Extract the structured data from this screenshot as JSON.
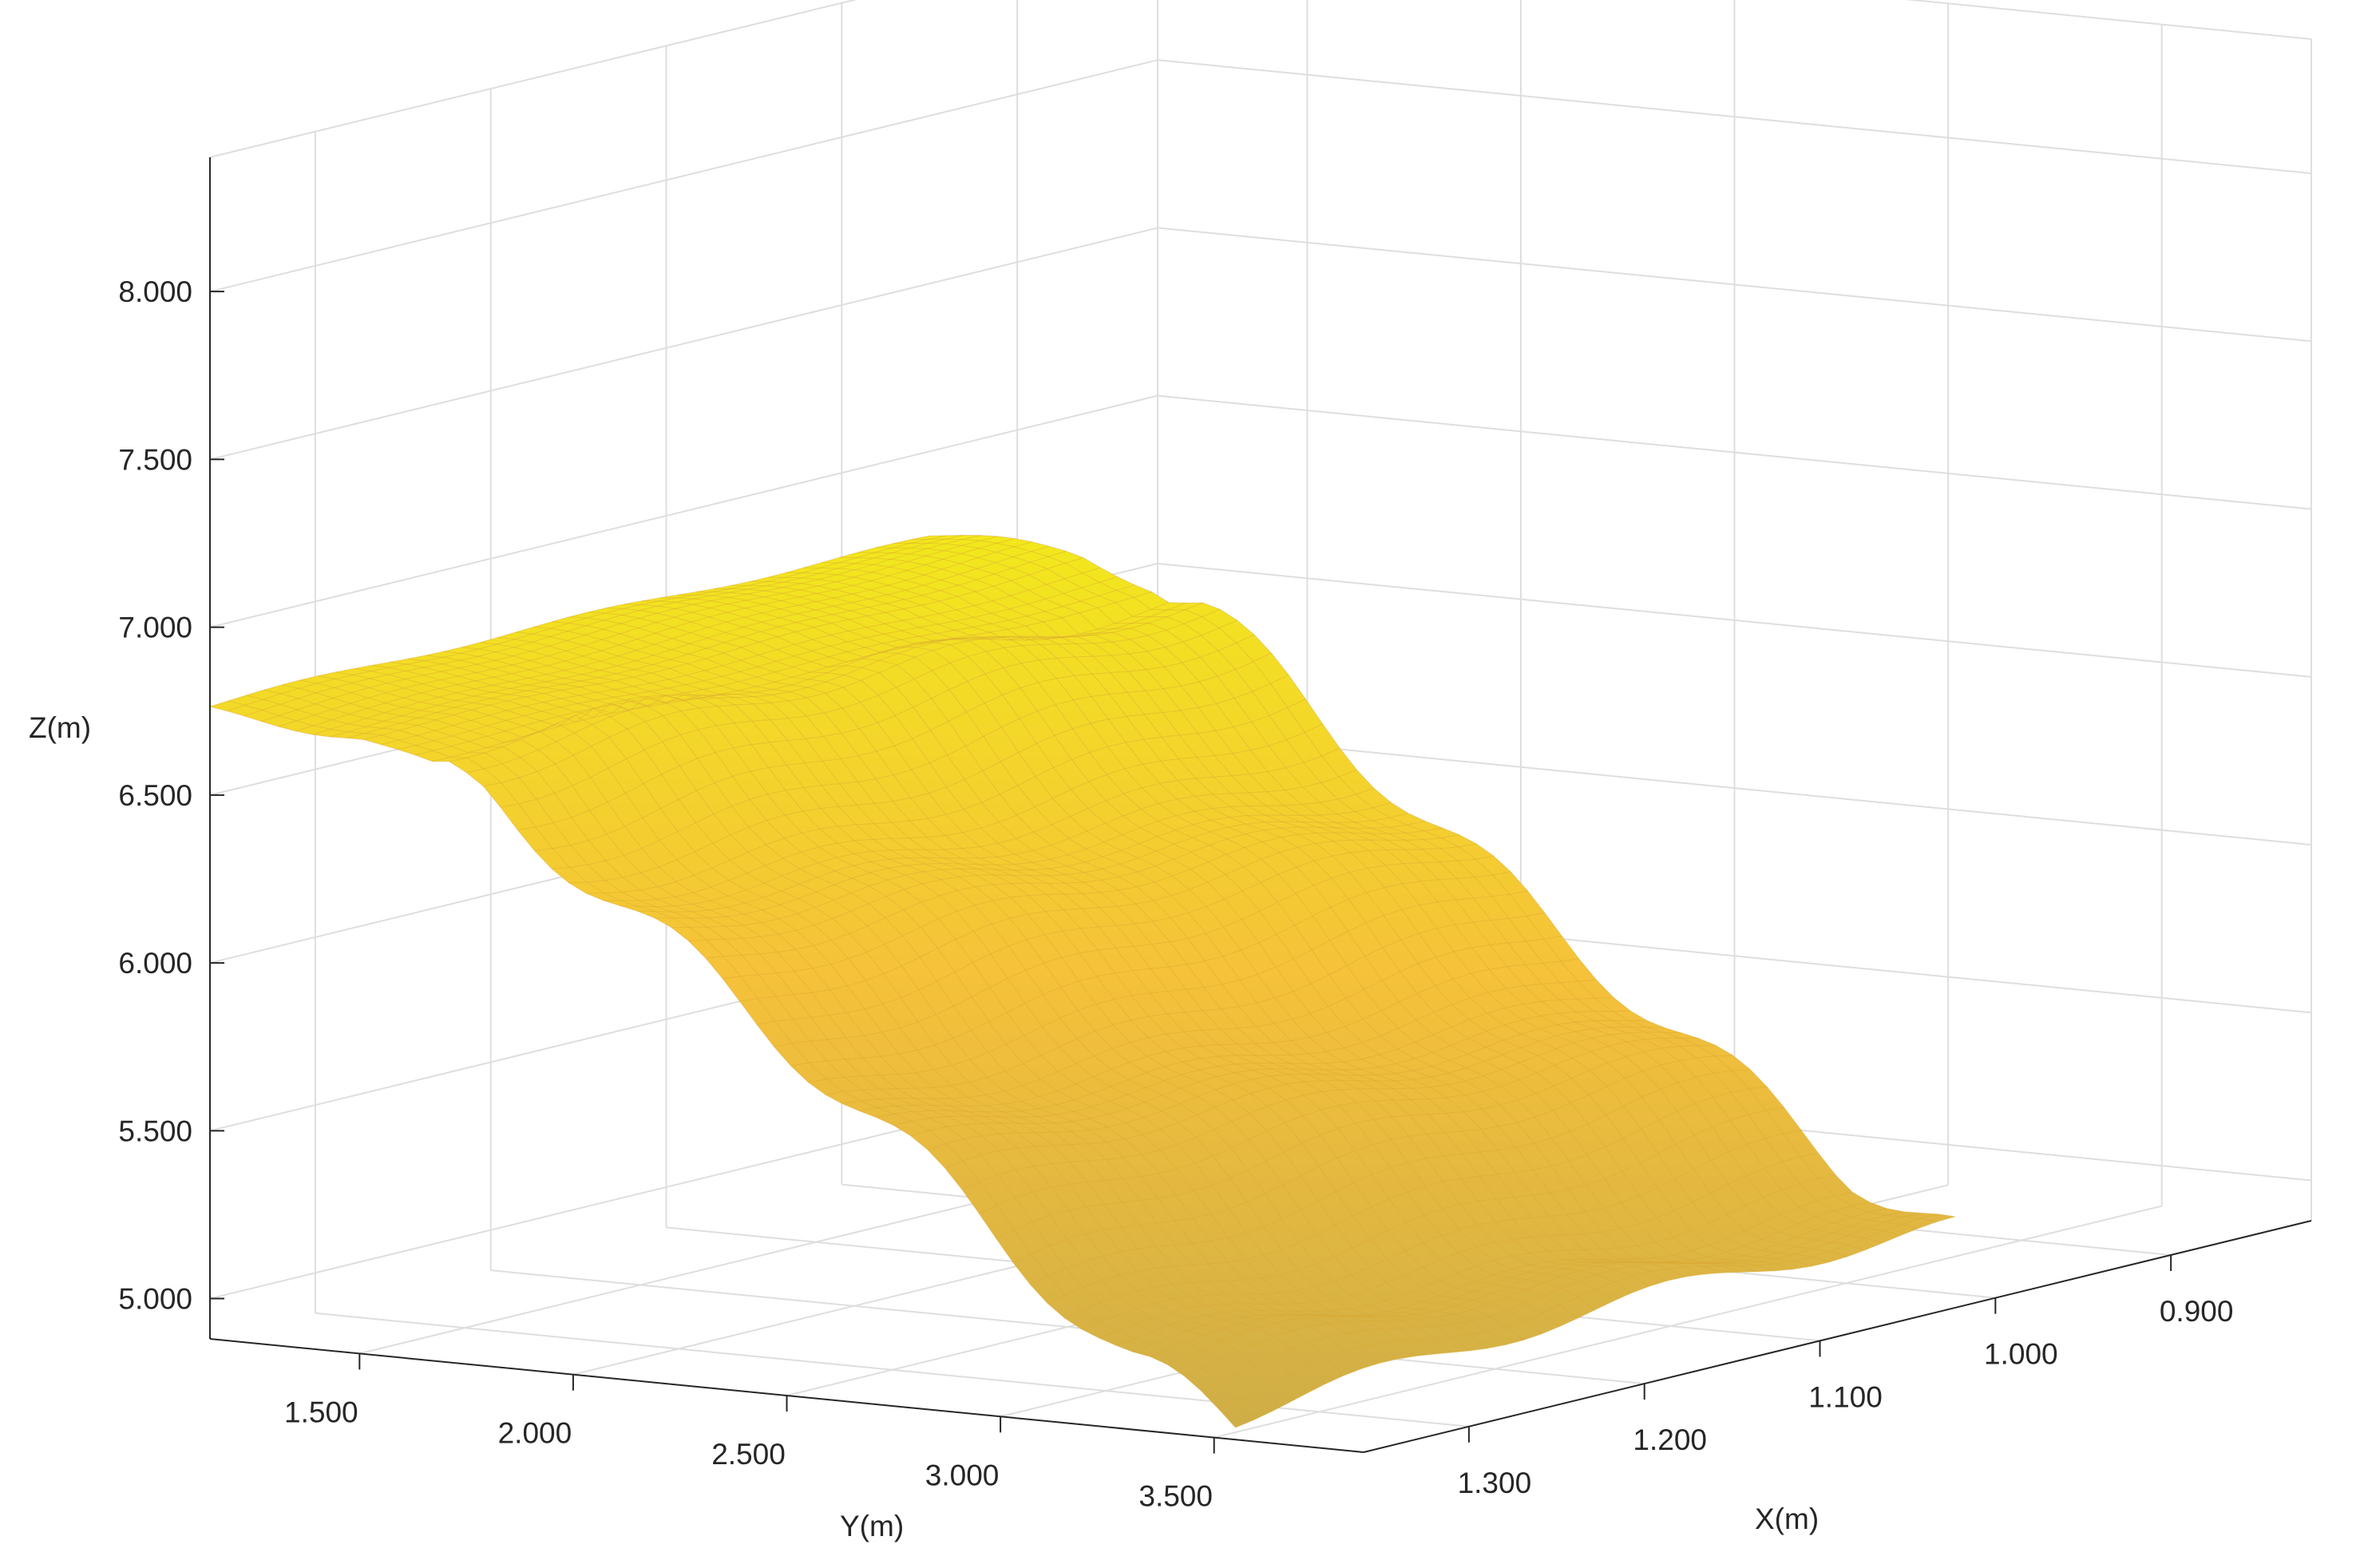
{
  "chart_data": {
    "type": "surface",
    "title": "",
    "xlabel": "X(m)",
    "ylabel": "Y(m)",
    "zlabel": "Z(m)",
    "xlim": [
      0.82,
      1.36
    ],
    "ylim": [
      1.15,
      3.85
    ],
    "zlim": [
      4.88,
      8.4
    ],
    "x_ticks": [
      {
        "value": 1.3,
        "label": "1.300"
      },
      {
        "value": 1.2,
        "label": "1.200"
      },
      {
        "value": 1.1,
        "label": "1.100"
      },
      {
        "value": 1.0,
        "label": "1.000"
      },
      {
        "value": 0.9,
        "label": "0.900"
      }
    ],
    "y_ticks": [
      {
        "value": 1.5,
        "label": "1.500"
      },
      {
        "value": 2.0,
        "label": "2.000"
      },
      {
        "value": 2.5,
        "label": "2.500"
      },
      {
        "value": 3.0,
        "label": "3.000"
      },
      {
        "value": 3.5,
        "label": "3.500"
      }
    ],
    "z_ticks": [
      {
        "value": 8.0,
        "label": "8.000"
      },
      {
        "value": 7.5,
        "label": "7.500"
      },
      {
        "value": 7.0,
        "label": "7.000"
      },
      {
        "value": 6.5,
        "label": "6.500"
      },
      {
        "value": 6.0,
        "label": "6.000"
      },
      {
        "value": 5.5,
        "label": "5.500"
      },
      {
        "value": 5.0,
        "label": "5.000"
      }
    ],
    "grid": true,
    "colormap": "parula (yellow-orange range)",
    "surface_extent": {
      "x_range": [
        0.95,
        1.36
      ],
      "y_range": [
        1.15,
        3.55
      ]
    },
    "surface_elevation_profile": {
      "y": [
        1.15,
        1.5,
        1.8,
        2.1,
        2.4,
        2.7,
        3.0,
        3.3,
        3.55
      ],
      "z": [
        6.75,
        6.73,
        6.6,
        6.3,
        6.0,
        5.7,
        5.4,
        5.1,
        4.95
      ]
    },
    "colors": {
      "surface_high": "#f2e81c",
      "surface_mid": "#f5c13a",
      "surface_low": "#cfae47",
      "grid": "#dedede",
      "axis": "#262626"
    }
  }
}
